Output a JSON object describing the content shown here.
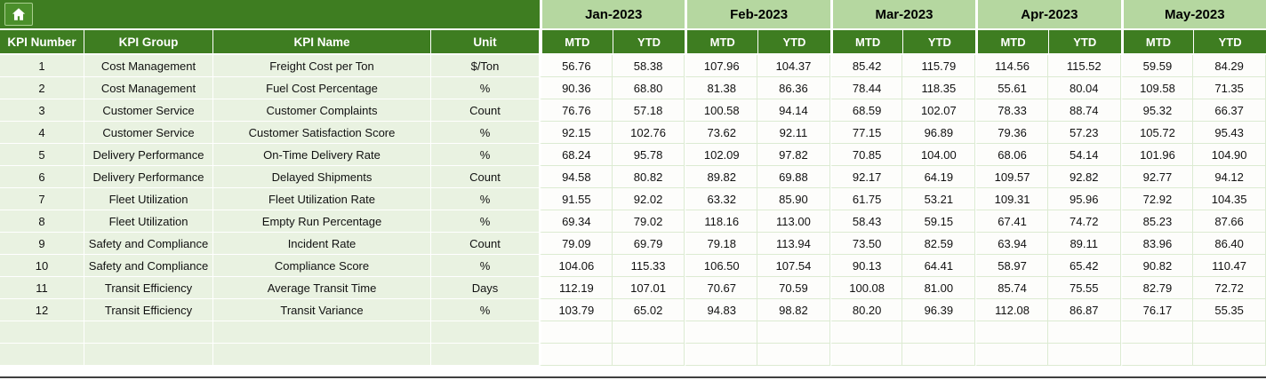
{
  "table": {
    "left_headers": [
      "KPI Number",
      "KPI Group",
      "KPI Name",
      "Unit"
    ],
    "months": [
      "Jan-2023",
      "Feb-2023",
      "Mar-2023",
      "Apr-2023",
      "May-2023"
    ],
    "period_headers": [
      "MTD",
      "YTD"
    ],
    "rows": [
      {
        "kpi_number": "1",
        "kpi_group": "Cost Management",
        "kpi_name": "Freight Cost per Ton",
        "unit": "$/Ton",
        "values": [
          "56.76",
          "58.38",
          "107.96",
          "104.37",
          "85.42",
          "115.79",
          "114.56",
          "115.52",
          "59.59",
          "84.29"
        ]
      },
      {
        "kpi_number": "2",
        "kpi_group": "Cost Management",
        "kpi_name": "Fuel Cost Percentage",
        "unit": "%",
        "values": [
          "90.36",
          "68.80",
          "81.38",
          "86.36",
          "78.44",
          "118.35",
          "55.61",
          "80.04",
          "109.58",
          "71.35"
        ]
      },
      {
        "kpi_number": "3",
        "kpi_group": "Customer Service",
        "kpi_name": "Customer Complaints",
        "unit": "Count",
        "values": [
          "76.76",
          "57.18",
          "100.58",
          "94.14",
          "68.59",
          "102.07",
          "78.33",
          "88.74",
          "95.32",
          "66.37"
        ]
      },
      {
        "kpi_number": "4",
        "kpi_group": "Customer Service",
        "kpi_name": "Customer Satisfaction Score",
        "unit": "%",
        "values": [
          "92.15",
          "102.76",
          "73.62",
          "92.11",
          "77.15",
          "96.89",
          "79.36",
          "57.23",
          "105.72",
          "95.43"
        ]
      },
      {
        "kpi_number": "5",
        "kpi_group": "Delivery Performance",
        "kpi_name": "On-Time Delivery Rate",
        "unit": "%",
        "values": [
          "68.24",
          "95.78",
          "102.09",
          "97.82",
          "70.85",
          "104.00",
          "68.06",
          "54.14",
          "101.96",
          "104.90"
        ]
      },
      {
        "kpi_number": "6",
        "kpi_group": "Delivery Performance",
        "kpi_name": "Delayed Shipments",
        "unit": "Count",
        "values": [
          "94.58",
          "80.82",
          "89.82",
          "69.88",
          "92.17",
          "64.19",
          "109.57",
          "92.82",
          "92.77",
          "94.12"
        ]
      },
      {
        "kpi_number": "7",
        "kpi_group": "Fleet Utilization",
        "kpi_name": "Fleet Utilization Rate",
        "unit": "%",
        "values": [
          "91.55",
          "92.02",
          "63.32",
          "85.90",
          "61.75",
          "53.21",
          "109.31",
          "95.96",
          "72.92",
          "104.35"
        ]
      },
      {
        "kpi_number": "8",
        "kpi_group": "Fleet Utilization",
        "kpi_name": "Empty Run Percentage",
        "unit": "%",
        "values": [
          "69.34",
          "79.02",
          "118.16",
          "113.00",
          "58.43",
          "59.15",
          "67.41",
          "74.72",
          "85.23",
          "87.66"
        ]
      },
      {
        "kpi_number": "9",
        "kpi_group": "Safety and Compliance",
        "kpi_name": "Incident Rate",
        "unit": "Count",
        "values": [
          "79.09",
          "69.79",
          "79.18",
          "113.94",
          "73.50",
          "82.59",
          "63.94",
          "89.11",
          "83.96",
          "86.40"
        ]
      },
      {
        "kpi_number": "10",
        "kpi_group": "Safety and Compliance",
        "kpi_name": "Compliance Score",
        "unit": "%",
        "values": [
          "104.06",
          "115.33",
          "106.50",
          "107.54",
          "90.13",
          "64.41",
          "58.97",
          "65.42",
          "90.82",
          "110.47"
        ]
      },
      {
        "kpi_number": "11",
        "kpi_group": "Transit Efficiency",
        "kpi_name": "Average Transit Time",
        "unit": "Days",
        "values": [
          "112.19",
          "107.01",
          "70.67",
          "70.59",
          "100.08",
          "81.00",
          "85.74",
          "75.55",
          "82.79",
          "72.72"
        ]
      },
      {
        "kpi_number": "12",
        "kpi_group": "Transit Efficiency",
        "kpi_name": "Transit Variance",
        "unit": "%",
        "values": [
          "103.79",
          "65.02",
          "94.83",
          "98.82",
          "80.20",
          "96.39",
          "112.08",
          "86.87",
          "76.17",
          "55.35"
        ]
      }
    ],
    "empty_row_count": 2
  },
  "icons": {
    "home": "home-icon"
  },
  "colors": {
    "header_dark_green": "#3e7d21",
    "month_light_green": "#b5d7a0",
    "left_cell_bg": "#e9f2e1",
    "value_cell_bg": "#fdfdfb",
    "grid_line": "#dcebd2",
    "text_dark": "#111111",
    "header_text": "#ffffff",
    "sheet_edge": "#404040"
  }
}
